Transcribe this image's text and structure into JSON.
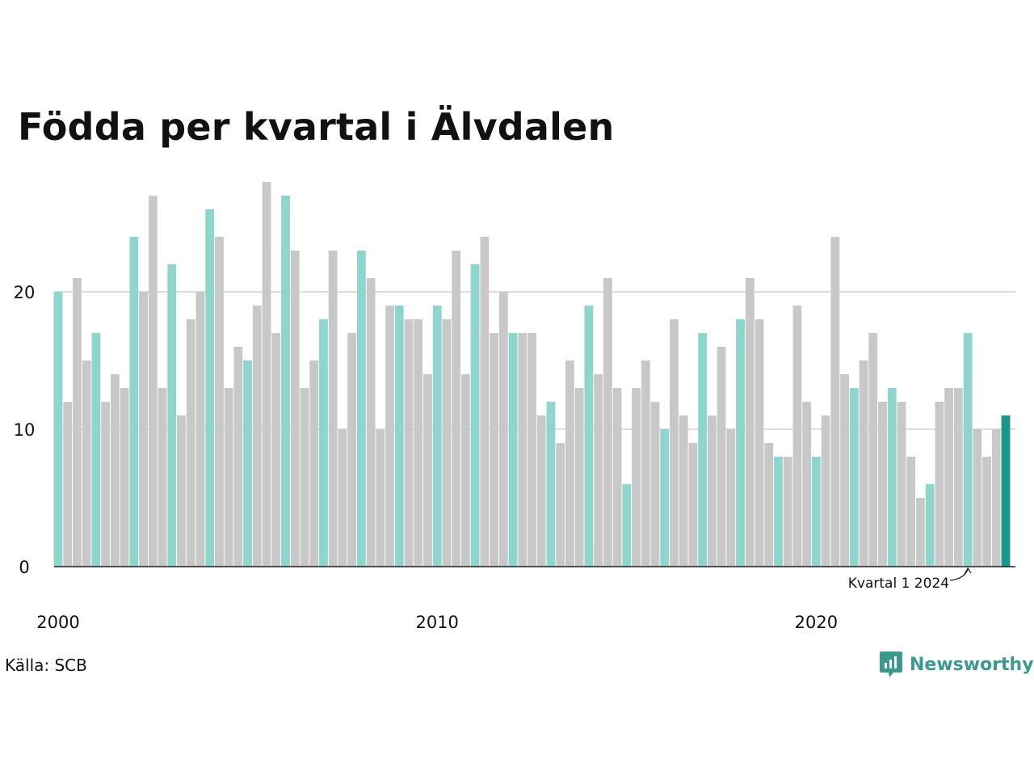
{
  "title": "Födda per kvartal i Älvdalen",
  "source": "Källa: SCB",
  "brand": {
    "name": "Newsworthy",
    "icon": "newsworthy-logo-icon"
  },
  "colors": {
    "q1": "#8ed6cc",
    "other": "#c8c8c8",
    "latest": "#1a968a",
    "grid": "#dddddd",
    "axis": "#222222"
  },
  "chart_data": {
    "type": "bar",
    "xlabel": "",
    "ylabel": "",
    "ylim": [
      0,
      28
    ],
    "yticks": [
      0,
      10,
      20
    ],
    "xtick_labels": [
      "2000",
      "2010",
      "2020"
    ],
    "grid": true,
    "start": "2000 Kvartal 1",
    "series": [
      {
        "values": [
          20,
          12,
          21,
          15,
          17,
          12,
          14,
          13,
          24,
          20,
          27,
          13,
          22,
          11,
          18,
          20,
          26,
          24,
          13,
          16,
          15,
          19,
          28,
          17,
          27,
          23,
          13,
          15,
          18,
          23,
          10,
          17,
          23,
          21,
          10,
          19,
          19,
          18,
          18,
          14,
          19,
          18,
          23,
          14,
          22,
          24,
          17,
          20,
          17,
          17,
          17,
          11,
          12,
          9,
          15,
          13,
          19,
          14,
          21,
          13,
          6,
          13,
          15,
          12,
          10,
          18,
          11,
          9,
          17,
          11,
          16,
          10,
          18,
          21,
          18,
          9,
          8,
          8,
          19,
          12,
          8,
          11,
          24,
          14,
          13,
          15,
          17,
          12,
          13,
          12,
          8,
          5,
          6,
          12,
          13,
          13,
          17,
          10,
          8,
          10,
          11
        ]
      }
    ],
    "annotation": {
      "text": "Kvartal 1 2024",
      "target": "2024 Kvartal 1"
    }
  }
}
